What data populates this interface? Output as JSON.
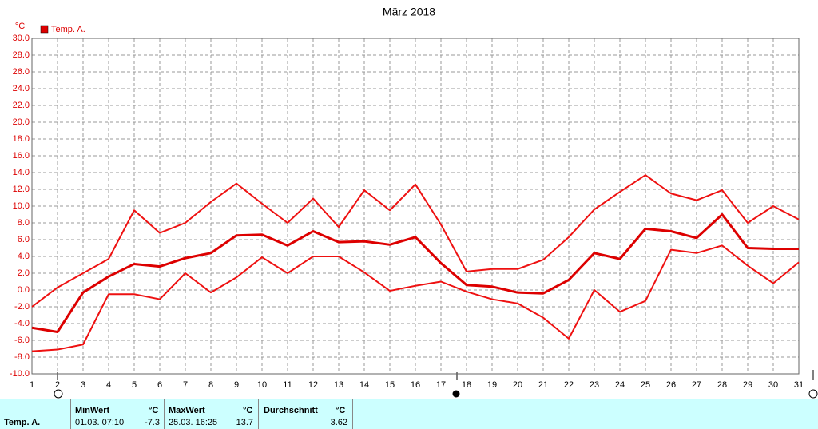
{
  "chart_data": {
    "type": "line",
    "title": "März 2018",
    "y_unit": "°C",
    "legend": "Temp. A.",
    "legend_color": "#dd0000",
    "x": [
      1,
      2,
      3,
      4,
      5,
      6,
      7,
      8,
      9,
      10,
      11,
      12,
      13,
      14,
      15,
      16,
      17,
      18,
      19,
      20,
      21,
      22,
      23,
      24,
      25,
      26,
      27,
      28,
      29,
      30,
      31
    ],
    "series": [
      {
        "color": "#ee1111",
        "values": [
          -2.0,
          0.3,
          2.0,
          3.7,
          9.5,
          6.8,
          8.0,
          10.5,
          12.7,
          10.3,
          8.0,
          10.9,
          7.5,
          11.9,
          9.5,
          12.6,
          7.8,
          2.2,
          2.5,
          2.5,
          3.6,
          6.3,
          9.6,
          11.7,
          13.7,
          11.5,
          10.7,
          11.9,
          8.0,
          10.0,
          8.4
        ]
      },
      {
        "color": "#dd0000",
        "values": [
          -4.5,
          -5.0,
          -0.3,
          1.6,
          3.1,
          2.8,
          3.8,
          4.4,
          6.5,
          6.6,
          5.3,
          7.0,
          5.7,
          5.8,
          5.4,
          6.3,
          3.2,
          0.6,
          0.4,
          -0.3,
          -0.4,
          1.2,
          4.4,
          3.7,
          7.3,
          7.0,
          6.2,
          9.0,
          5.0,
          4.9,
          4.9
        ]
      },
      {
        "color": "#ee1111",
        "values": [
          -7.3,
          -7.1,
          -6.5,
          -0.5,
          -0.5,
          -1.1,
          2.0,
          -0.3,
          1.5,
          3.9,
          2.0,
          4.0,
          4.0,
          2.1,
          -0.1,
          0.5,
          1.0,
          -0.2,
          -1.1,
          -1.6,
          -3.3,
          -5.8,
          0.0,
          -2.6,
          -1.3,
          4.8,
          4.4,
          5.3,
          2.9,
          0.8,
          3.3
        ]
      }
    ],
    "xlim": [
      1,
      31
    ],
    "xticks": [
      1,
      2,
      3,
      4,
      5,
      6,
      7,
      8,
      9,
      10,
      11,
      12,
      13,
      14,
      15,
      16,
      17,
      18,
      19,
      20,
      21,
      22,
      23,
      24,
      25,
      26,
      27,
      28,
      29,
      30,
      31
    ],
    "ylim": [
      -10,
      30
    ],
    "yticks": [
      {
        "value": -10,
        "label": "-10.0"
      },
      {
        "value": -8,
        "label": "-8.0"
      },
      {
        "value": -6,
        "label": "-6.0"
      },
      {
        "value": -4,
        "label": "-4.0"
      },
      {
        "value": -2,
        "label": "-2.0"
      },
      {
        "value": 0,
        "label": "0.0"
      },
      {
        "value": 2,
        "label": "2.0"
      },
      {
        "value": 4,
        "label": "4.0"
      },
      {
        "value": 6,
        "label": "6.0"
      },
      {
        "value": 8,
        "label": "8.0"
      },
      {
        "value": 10,
        "label": "10.0"
      },
      {
        "value": 12,
        "label": "12.0"
      },
      {
        "value": 14,
        "label": "14.0"
      },
      {
        "value": 16,
        "label": "16.0"
      },
      {
        "value": 18,
        "label": "18.0"
      },
      {
        "value": 20,
        "label": "20.0"
      },
      {
        "value": 22,
        "label": "22.0"
      },
      {
        "value": 24,
        "label": "24.0"
      },
      {
        "value": 26,
        "label": "26.0"
      },
      {
        "value": 28,
        "label": "28.0"
      },
      {
        "value": 30,
        "label": "30.0"
      }
    ],
    "grid": true
  },
  "summary": {
    "row_label": "Temp. A.",
    "min": {
      "header": "MinWert",
      "unit": "°C",
      "time": "01.03.  07:10",
      "value": "-7.3"
    },
    "max": {
      "header": "MaxWert",
      "unit": "°C",
      "time": "25.03.  16:25",
      "value": "13.7"
    },
    "avg": {
      "header": "Durchschnitt",
      "unit": "°C",
      "value": "3.62"
    }
  }
}
